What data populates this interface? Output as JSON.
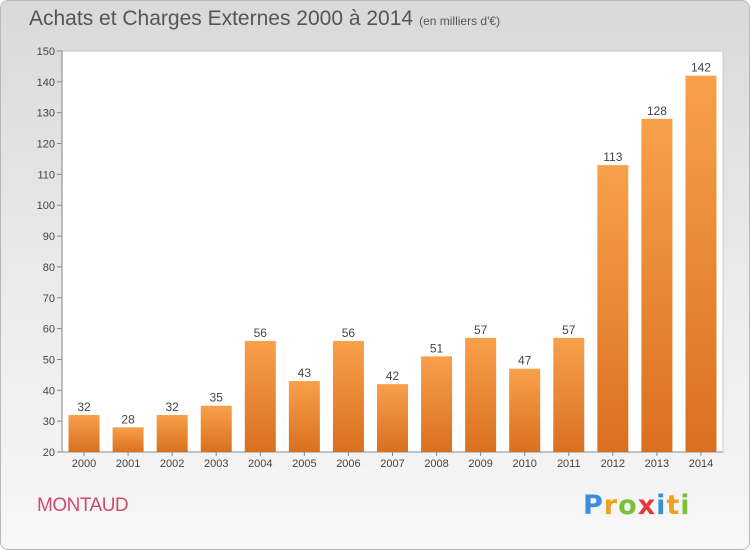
{
  "title": "Achats et Charges Externes 2000 à 2014",
  "unit": "(en milliers d'€)",
  "commune": "MONTAUD",
  "logo": {
    "letters": [
      "P",
      "r",
      "o",
      "x",
      "i",
      "t",
      "i"
    ]
  },
  "colors": {
    "bar_light": "#f8a04b",
    "bar_dark": "#d9701f",
    "commune": "#d24a72",
    "logo": [
      "#3a8fd6",
      "#f0a020",
      "#7bbf3a",
      "#e03a3a",
      "#3a8fd6",
      "#f0a020",
      "#7bbf3a"
    ]
  },
  "chart_data": {
    "type": "bar",
    "categories": [
      "2000",
      "2001",
      "2002",
      "2003",
      "2004",
      "2005",
      "2006",
      "2007",
      "2008",
      "2009",
      "2010",
      "2011",
      "2012",
      "2013",
      "2014"
    ],
    "values": [
      32,
      28,
      32,
      35,
      56,
      43,
      56,
      42,
      51,
      57,
      47,
      57,
      113,
      128,
      142
    ],
    "title": "Achats et Charges Externes 2000 à 2014",
    "ylim": [
      20,
      150
    ],
    "yticks": [
      20,
      30,
      40,
      50,
      60,
      70,
      80,
      90,
      100,
      110,
      120,
      130,
      140,
      150
    ],
    "grid": false,
    "data_labels": true
  }
}
